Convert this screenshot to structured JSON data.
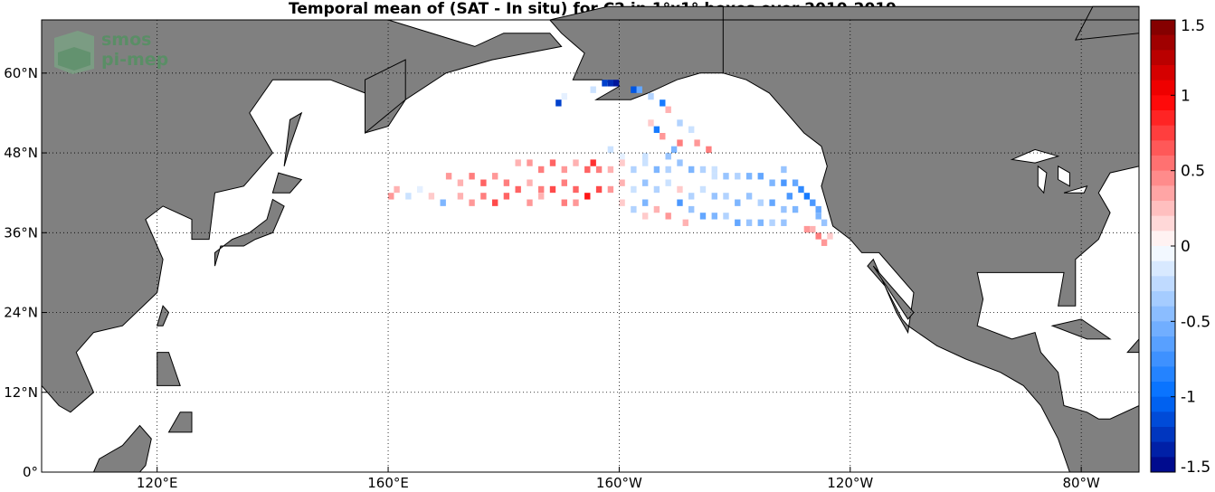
{
  "title": "Temporal mean of (SAT - In situ) for C2 in 1°x1° boxes over 2010-2019",
  "logo": {
    "line1": "smos",
    "line2": "pi-mep"
  },
  "map": {
    "lon_range": [
      100,
      290
    ],
    "lat_range": [
      0,
      68
    ],
    "lon_ticks": [
      {
        "lon": 120,
        "label": "120°E"
      },
      {
        "lon": 160,
        "label": "160°E"
      },
      {
        "lon": 200,
        "label": "160°W"
      },
      {
        "lon": 240,
        "label": "120°W"
      },
      {
        "lon": 280,
        "label": "80°W"
      }
    ],
    "lat_ticks": [
      {
        "lat": 0,
        "label": "0°"
      },
      {
        "lat": 12,
        "label": "12°N"
      },
      {
        "lat": 24,
        "label": "24°N"
      },
      {
        "lat": 36,
        "label": "36°N"
      },
      {
        "lat": 48,
        "label": "48°N"
      },
      {
        "lat": 60,
        "label": "60°N"
      }
    ],
    "grid": true,
    "land_color": "#808080",
    "ocean_color": "#ffffff"
  },
  "colorbar": {
    "min": -1.5,
    "max": 1.5,
    "ticks": [
      {
        "v": 1.5,
        "label": "1.5"
      },
      {
        "v": 1,
        "label": "1"
      },
      {
        "v": 0.5,
        "label": "0.5"
      },
      {
        "v": 0,
        "label": "0"
      },
      {
        "v": -0.5,
        "label": "-0.5"
      },
      {
        "v": -1,
        "label": "-1"
      },
      {
        "v": -1.5,
        "label": "-1.5"
      }
    ]
  },
  "chart_data": {
    "type": "heatmap",
    "title": "Temporal mean of (SAT - In situ) for C2 in 1°x1° boxes over 2010-2019",
    "value_range": [
      -1.5,
      1.5
    ],
    "cell_size_deg": 1,
    "cells": [
      {
        "lon": 198,
        "lat": 58,
        "v": -1.3
      },
      {
        "lon": 199,
        "lat": 58,
        "v": -1.4
      },
      {
        "lon": 197,
        "lat": 58,
        "v": -1.2
      },
      {
        "lon": 202,
        "lat": 57,
        "v": -1.1
      },
      {
        "lon": 203,
        "lat": 57,
        "v": -0.6
      },
      {
        "lon": 205,
        "lat": 56,
        "v": -0.3
      },
      {
        "lon": 195,
        "lat": 57,
        "v": -0.2
      },
      {
        "lon": 190,
        "lat": 56,
        "v": -0.1
      },
      {
        "lon": 207,
        "lat": 55,
        "v": -0.9
      },
      {
        "lon": 208,
        "lat": 54,
        "v": 0.3
      },
      {
        "lon": 210,
        "lat": 52,
        "v": -0.3
      },
      {
        "lon": 212,
        "lat": 51,
        "v": -0.2
      },
      {
        "lon": 189,
        "lat": 55,
        "v": -1.2
      },
      {
        "lon": 205,
        "lat": 52,
        "v": 0.2
      },
      {
        "lon": 206,
        "lat": 51,
        "v": -0.9
      },
      {
        "lon": 207,
        "lat": 50,
        "v": 0.4
      },
      {
        "lon": 210,
        "lat": 49,
        "v": 0.5
      },
      {
        "lon": 213,
        "lat": 49,
        "v": 0.4
      },
      {
        "lon": 215,
        "lat": 48,
        "v": 0.5
      },
      {
        "lon": 209,
        "lat": 48,
        "v": -0.5
      },
      {
        "lon": 208,
        "lat": 47,
        "v": -0.4
      },
      {
        "lon": 204,
        "lat": 47,
        "v": -0.2
      },
      {
        "lon": 198,
        "lat": 48,
        "v": -0.2
      },
      {
        "lon": 200,
        "lat": 47,
        "v": -0.1
      },
      {
        "lon": 182,
        "lat": 46,
        "v": 0.3
      },
      {
        "lon": 184,
        "lat": 46,
        "v": 0.4
      },
      {
        "lon": 186,
        "lat": 45,
        "v": 0.5
      },
      {
        "lon": 188,
        "lat": 46,
        "v": 0.6
      },
      {
        "lon": 190,
        "lat": 45,
        "v": 0.4
      },
      {
        "lon": 192,
        "lat": 46,
        "v": 0.3
      },
      {
        "lon": 194,
        "lat": 45,
        "v": 0.6
      },
      {
        "lon": 195,
        "lat": 46,
        "v": 0.8
      },
      {
        "lon": 196,
        "lat": 45,
        "v": 0.5
      },
      {
        "lon": 198,
        "lat": 45,
        "v": 0.3
      },
      {
        "lon": 200,
        "lat": 46,
        "v": 0.2
      },
      {
        "lon": 202,
        "lat": 45,
        "v": -0.3
      },
      {
        "lon": 204,
        "lat": 46,
        "v": -0.2
      },
      {
        "lon": 206,
        "lat": 45,
        "v": -0.5
      },
      {
        "lon": 208,
        "lat": 45,
        "v": -0.3
      },
      {
        "lon": 210,
        "lat": 46,
        "v": -0.4
      },
      {
        "lon": 212,
        "lat": 45,
        "v": -0.5
      },
      {
        "lon": 214,
        "lat": 45,
        "v": -0.3
      },
      {
        "lon": 216,
        "lat": 45,
        "v": -0.2
      },
      {
        "lon": 218,
        "lat": 44,
        "v": -0.4
      },
      {
        "lon": 220,
        "lat": 44,
        "v": -0.3
      },
      {
        "lon": 222,
        "lat": 44,
        "v": -0.5
      },
      {
        "lon": 224,
        "lat": 44,
        "v": -0.6
      },
      {
        "lon": 226,
        "lat": 43,
        "v": -0.5
      },
      {
        "lon": 228,
        "lat": 43,
        "v": -0.7
      },
      {
        "lon": 230,
        "lat": 43,
        "v": -0.6
      },
      {
        "lon": 231,
        "lat": 42,
        "v": -0.8
      },
      {
        "lon": 232,
        "lat": 41,
        "v": -0.9
      },
      {
        "lon": 233,
        "lat": 40,
        "v": -0.7
      },
      {
        "lon": 234,
        "lat": 39,
        "v": -0.6
      },
      {
        "lon": 234,
        "lat": 38,
        "v": -0.5
      },
      {
        "lon": 235,
        "lat": 37,
        "v": -0.4
      },
      {
        "lon": 233,
        "lat": 36,
        "v": 0.3
      },
      {
        "lon": 234,
        "lat": 35,
        "v": 0.5
      },
      {
        "lon": 235,
        "lat": 34,
        "v": 0.4
      },
      {
        "lon": 236,
        "lat": 35,
        "v": 0.2
      },
      {
        "lon": 232,
        "lat": 36,
        "v": 0.4
      },
      {
        "lon": 170,
        "lat": 44,
        "v": 0.4
      },
      {
        "lon": 172,
        "lat": 43,
        "v": 0.3
      },
      {
        "lon": 174,
        "lat": 44,
        "v": 0.5
      },
      {
        "lon": 176,
        "lat": 43,
        "v": 0.6
      },
      {
        "lon": 178,
        "lat": 44,
        "v": 0.4
      },
      {
        "lon": 180,
        "lat": 43,
        "v": 0.5
      },
      {
        "lon": 182,
        "lat": 42,
        "v": 0.6
      },
      {
        "lon": 184,
        "lat": 43,
        "v": 0.3
      },
      {
        "lon": 186,
        "lat": 42,
        "v": 0.5
      },
      {
        "lon": 188,
        "lat": 42,
        "v": 0.7
      },
      {
        "lon": 190,
        "lat": 43,
        "v": 0.5
      },
      {
        "lon": 192,
        "lat": 42,
        "v": 0.6
      },
      {
        "lon": 194,
        "lat": 41,
        "v": 0.9
      },
      {
        "lon": 196,
        "lat": 42,
        "v": 0.7
      },
      {
        "lon": 198,
        "lat": 42,
        "v": 0.4
      },
      {
        "lon": 200,
        "lat": 43,
        "v": 0.3
      },
      {
        "lon": 202,
        "lat": 42,
        "v": -0.2
      },
      {
        "lon": 204,
        "lat": 43,
        "v": -0.4
      },
      {
        "lon": 206,
        "lat": 42,
        "v": -0.3
      },
      {
        "lon": 208,
        "lat": 43,
        "v": -0.2
      },
      {
        "lon": 210,
        "lat": 42,
        "v": 0.2
      },
      {
        "lon": 212,
        "lat": 41,
        "v": -0.3
      },
      {
        "lon": 214,
        "lat": 42,
        "v": -0.2
      },
      {
        "lon": 216,
        "lat": 41,
        "v": -0.4
      },
      {
        "lon": 218,
        "lat": 41,
        "v": -0.3
      },
      {
        "lon": 220,
        "lat": 40,
        "v": -0.5
      },
      {
        "lon": 222,
        "lat": 41,
        "v": -0.4
      },
      {
        "lon": 224,
        "lat": 40,
        "v": -0.3
      },
      {
        "lon": 226,
        "lat": 40,
        "v": -0.6
      },
      {
        "lon": 228,
        "lat": 39,
        "v": -0.4
      },
      {
        "lon": 230,
        "lat": 39,
        "v": -0.5
      },
      {
        "lon": 210,
        "lat": 40,
        "v": -0.7
      },
      {
        "lon": 212,
        "lat": 39,
        "v": -0.4
      },
      {
        "lon": 214,
        "lat": 38,
        "v": -0.6
      },
      {
        "lon": 216,
        "lat": 38,
        "v": -0.5
      },
      {
        "lon": 218,
        "lat": 38,
        "v": -0.3
      },
      {
        "lon": 220,
        "lat": 37,
        "v": -0.6
      },
      {
        "lon": 222,
        "lat": 37,
        "v": -0.4
      },
      {
        "lon": 224,
        "lat": 37,
        "v": -0.5
      },
      {
        "lon": 226,
        "lat": 37,
        "v": -0.3
      },
      {
        "lon": 228,
        "lat": 37,
        "v": -0.4
      },
      {
        "lon": 200,
        "lat": 40,
        "v": 0.2
      },
      {
        "lon": 202,
        "lat": 39,
        "v": -0.3
      },
      {
        "lon": 204,
        "lat": 40,
        "v": -0.5
      },
      {
        "lon": 206,
        "lat": 39,
        "v": 0.3
      },
      {
        "lon": 208,
        "lat": 38,
        "v": 0.4
      },
      {
        "lon": 211,
        "lat": 37,
        "v": 0.3
      },
      {
        "lon": 204,
        "lat": 38,
        "v": 0.2
      },
      {
        "lon": 160,
        "lat": 41,
        "v": 0.4
      },
      {
        "lon": 161,
        "lat": 42,
        "v": 0.3
      },
      {
        "lon": 163,
        "lat": 41,
        "v": -0.2
      },
      {
        "lon": 165,
        "lat": 42,
        "v": -0.1
      },
      {
        "lon": 167,
        "lat": 41,
        "v": 0.2
      },
      {
        "lon": 169,
        "lat": 40,
        "v": -0.5
      },
      {
        "lon": 172,
        "lat": 41,
        "v": 0.3
      },
      {
        "lon": 174,
        "lat": 40,
        "v": 0.4
      },
      {
        "lon": 176,
        "lat": 41,
        "v": 0.5
      },
      {
        "lon": 178,
        "lat": 40,
        "v": 0.7
      },
      {
        "lon": 180,
        "lat": 41,
        "v": 0.6
      },
      {
        "lon": 184,
        "lat": 40,
        "v": 0.4
      },
      {
        "lon": 186,
        "lat": 41,
        "v": 0.3
      },
      {
        "lon": 190,
        "lat": 40,
        "v": 0.5
      },
      {
        "lon": 192,
        "lat": 40,
        "v": 0.4
      },
      {
        "lon": 216,
        "lat": 44,
        "v": -0.2
      },
      {
        "lon": 228,
        "lat": 45,
        "v": -0.4
      },
      {
        "lon": 229,
        "lat": 41,
        "v": -0.7
      }
    ]
  }
}
